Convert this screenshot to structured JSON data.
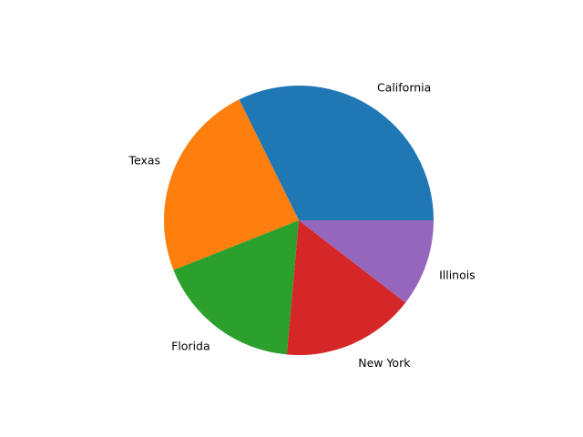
{
  "chart_data": {
    "type": "pie",
    "title": "",
    "categories": [
      "California",
      "Texas",
      "Florida",
      "New York",
      "Illinois"
    ],
    "values": [
      39.5,
      29.0,
      21.5,
      19.5,
      12.8
    ],
    "colors": [
      "#1f77b4",
      "#ff7f0e",
      "#2ca02c",
      "#d62728",
      "#9467bd"
    ],
    "start_angle_deg": 0,
    "direction": "counterclockwise",
    "legend": "none"
  }
}
